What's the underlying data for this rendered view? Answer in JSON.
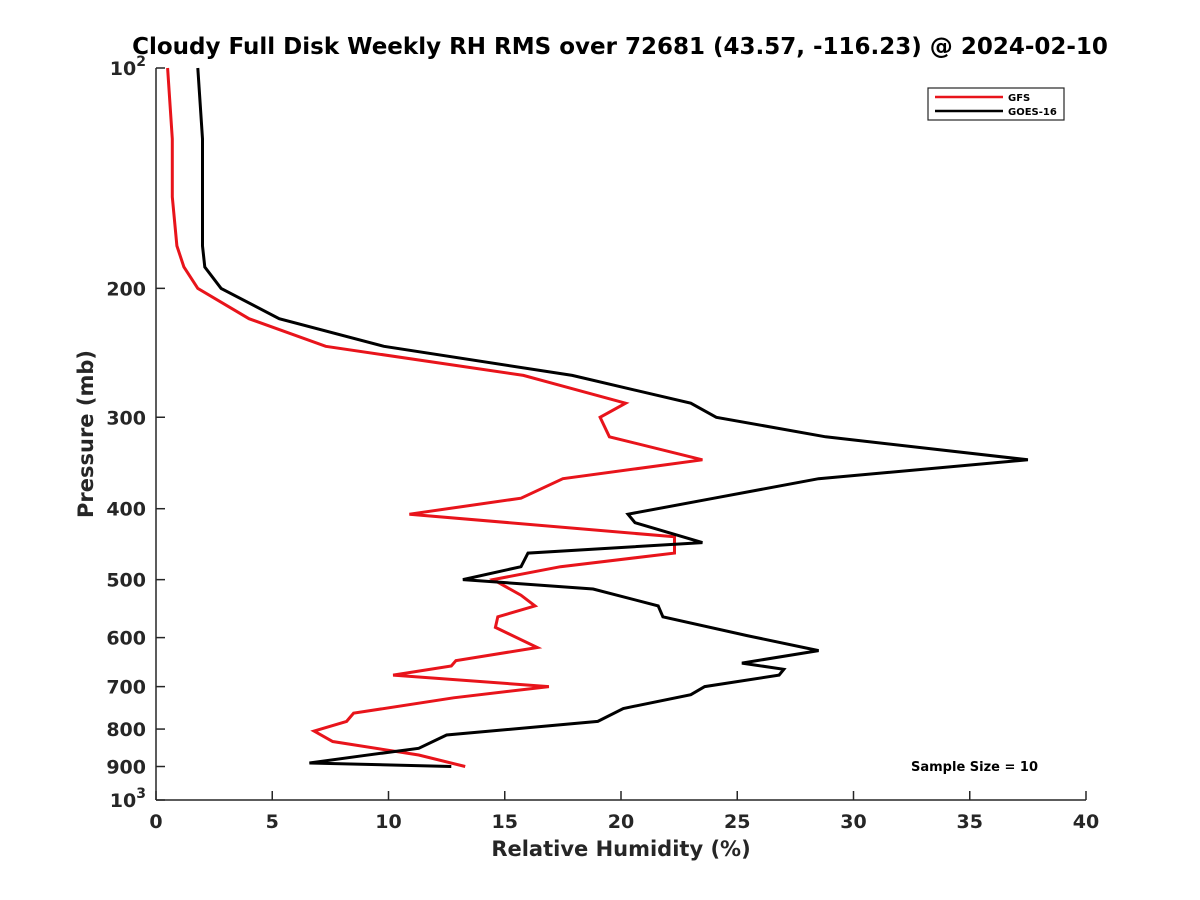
{
  "chart_data": {
    "type": "line",
    "title": "Cloudy Full Disk Weekly RH RMS over 72681 (43.57, -116.23) @ 2024-02-10",
    "xlabel": "Relative Humidity (%)",
    "ylabel": "Pressure (mb)",
    "xlim": [
      0,
      40
    ],
    "ylim": [
      100,
      1000
    ],
    "y_scale": "log",
    "y_reversed": true,
    "grid": false,
    "legend_position": "top-right",
    "x_ticks": [
      "0",
      "5",
      "10",
      "15",
      "20",
      "25",
      "30",
      "35",
      "40"
    ],
    "y_ticks": [
      {
        "value": 100,
        "base": "10",
        "exp": "2"
      },
      {
        "value": 200,
        "label": "200"
      },
      {
        "value": 300,
        "label": "300"
      },
      {
        "value": 400,
        "label": "400"
      },
      {
        "value": 500,
        "label": "500"
      },
      {
        "value": 600,
        "label": "600"
      },
      {
        "value": 700,
        "label": "700"
      },
      {
        "value": 800,
        "label": "800"
      },
      {
        "value": 900,
        "label": "900"
      },
      {
        "value": 1000,
        "base": "10",
        "exp": "3"
      }
    ],
    "annotation": "Sample Size = 10",
    "series": [
      {
        "name": "GFS",
        "color": "#e8141b",
        "points": [
          [
            0.5,
            100
          ],
          [
            0.7,
            125
          ],
          [
            0.7,
            150
          ],
          [
            0.9,
            175
          ],
          [
            1.2,
            187
          ],
          [
            1.8,
            200
          ],
          [
            4.0,
            220
          ],
          [
            7.3,
            240
          ],
          [
            15.8,
            263
          ],
          [
            20.2,
            287
          ],
          [
            19.1,
            300
          ],
          [
            19.5,
            319
          ],
          [
            23.5,
            343
          ],
          [
            17.5,
            364
          ],
          [
            15.7,
            387
          ],
          [
            10.9,
            407
          ],
          [
            22.3,
            437
          ],
          [
            22.3,
            460
          ],
          [
            17.4,
            480
          ],
          [
            14.5,
            500
          ],
          [
            15.7,
            525
          ],
          [
            16.3,
            543
          ],
          [
            14.7,
            562
          ],
          [
            14.6,
            581
          ],
          [
            16.4,
            619
          ],
          [
            12.9,
            645
          ],
          [
            12.7,
            656
          ],
          [
            10.2,
            675
          ],
          [
            16.9,
            700
          ],
          [
            12.8,
            725
          ],
          [
            8.5,
            761
          ],
          [
            8.2,
            781
          ],
          [
            6.8,
            805
          ],
          [
            7.6,
            832
          ],
          [
            11.3,
            868
          ],
          [
            13.3,
            900
          ]
        ]
      },
      {
        "name": "GOES-16",
        "color": "#000000",
        "points": [
          [
            1.8,
            100
          ],
          [
            2.0,
            125
          ],
          [
            2.0,
            175
          ],
          [
            2.1,
            187
          ],
          [
            2.8,
            200
          ],
          [
            5.3,
            220
          ],
          [
            9.8,
            240
          ],
          [
            17.9,
            263
          ],
          [
            23.0,
            287
          ],
          [
            24.1,
            300
          ],
          [
            28.8,
            319
          ],
          [
            37.5,
            343
          ],
          [
            28.5,
            364
          ],
          [
            24.0,
            387
          ],
          [
            20.3,
            407
          ],
          [
            20.6,
            418
          ],
          [
            23.5,
            445
          ],
          [
            16.0,
            460
          ],
          [
            15.7,
            480
          ],
          [
            13.2,
            500
          ],
          [
            18.8,
            515
          ],
          [
            21.6,
            543
          ],
          [
            21.8,
            562
          ],
          [
            25.4,
            596
          ],
          [
            28.5,
            625
          ],
          [
            25.2,
            650
          ],
          [
            27.0,
            663
          ],
          [
            26.8,
            675
          ],
          [
            23.6,
            700
          ],
          [
            23.0,
            718
          ],
          [
            20.1,
            750
          ],
          [
            19.0,
            781
          ],
          [
            12.5,
            815
          ],
          [
            11.3,
            850
          ],
          [
            8.9,
            870
          ],
          [
            6.6,
            890
          ],
          [
            12.7,
            900
          ]
        ]
      }
    ]
  }
}
